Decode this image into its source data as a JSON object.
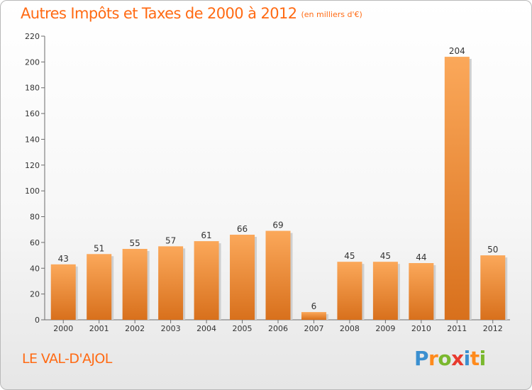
{
  "title": "Autres Impôts et Taxes de 2000 à 2012",
  "title_unit": "(en milliers d'€)",
  "commune": "LE VAL-D'AJOL",
  "logo": [
    "P",
    "r",
    "o",
    "x",
    "i",
    "t",
    "i"
  ],
  "colors": {
    "accent": "#ff6a13",
    "bar_light": "#fba85a",
    "bar_dark": "#d8701c",
    "logo": [
      "#3a8fd0",
      "#ff8a1c",
      "#7ab82e",
      "#e83a2e",
      "#3a8fd0",
      "#ff8a1c",
      "#7ab82e"
    ]
  },
  "chart_data": {
    "type": "bar",
    "categories": [
      "2000",
      "2001",
      "2002",
      "2003",
      "2004",
      "2005",
      "2006",
      "2007",
      "2008",
      "2009",
      "2010",
      "2011",
      "2012"
    ],
    "values": [
      43,
      51,
      55,
      57,
      61,
      66,
      69,
      6,
      45,
      45,
      44,
      204,
      50
    ],
    "ylim": [
      0,
      220
    ],
    "yticks": [
      0,
      20,
      40,
      60,
      80,
      100,
      120,
      140,
      160,
      180,
      200,
      220
    ],
    "grid": false,
    "legend": "none"
  }
}
